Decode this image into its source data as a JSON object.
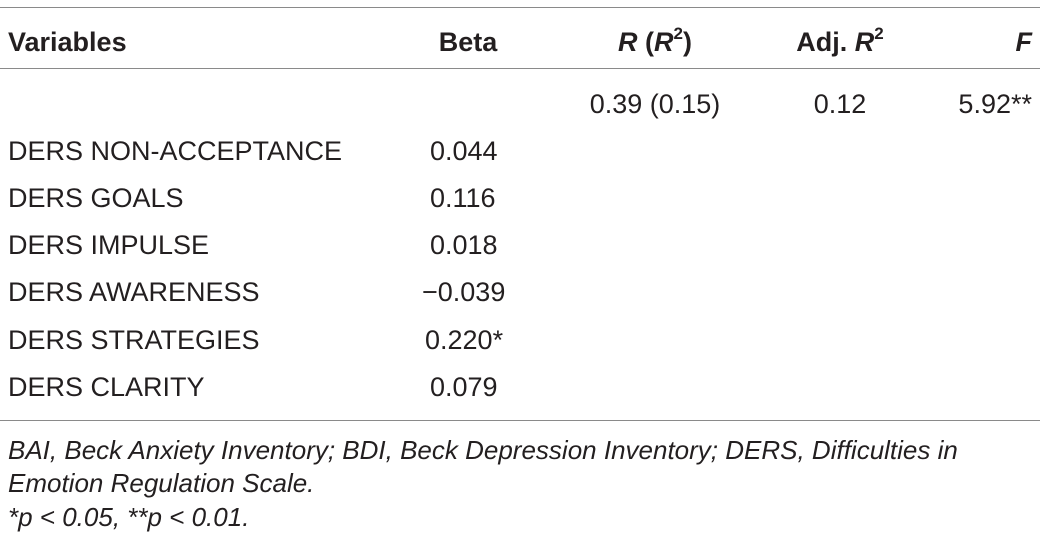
{
  "table": {
    "headers": {
      "variables": "Variables",
      "beta": "Beta",
      "r_main": "R",
      "r_paren_open": " (",
      "r_inner": "R",
      "r_sup": "2",
      "r_paren_close": ")",
      "adj_prefix": "Adj. ",
      "adj_r": "R",
      "adj_sup": "2",
      "f": "F"
    },
    "model_row": {
      "r_r2": "0.39 (0.15)",
      "adj_r2": "0.12",
      "f": "5.92**"
    },
    "rows": [
      {
        "variable": "DERS NON-ACCEPTANCE",
        "beta": "0.044"
      },
      {
        "variable": "DERS GOALS",
        "beta": "0.116"
      },
      {
        "variable": "DERS IMPULSE",
        "beta": "0.018"
      },
      {
        "variable": "DERS AWARENESS",
        "beta": "−0.039"
      },
      {
        "variable": "DERS STRATEGIES",
        "beta": "0.220*"
      },
      {
        "variable": "DERS CLARITY",
        "beta": "0.079"
      }
    ]
  },
  "footnotes": {
    "abbreviations": "BAI, Beck Anxiety Inventory; BDI, Beck Depression Inventory; DERS, Difficulties in Emotion Regulation Scale.",
    "significance": "*p < 0.05, **p < 0.01."
  }
}
